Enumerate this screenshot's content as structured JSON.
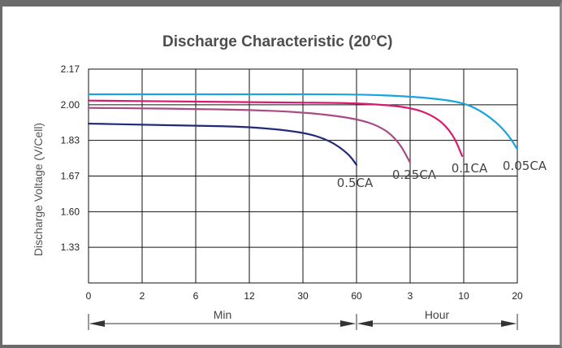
{
  "chart_data": {
    "type": "line",
    "title": "Discharge Characteristic (20",
    "title_suffix": "C)",
    "title_degree": "o",
    "ylabel": "Discharge Voltage (V/Cell)",
    "y_ticks": [
      "2.17",
      "2.00",
      "1.83",
      "1.67",
      "1.60",
      "1.33"
    ],
    "x_ticks": [
      "0",
      "2",
      "6",
      "12",
      "30",
      "60",
      "3",
      "10",
      "20"
    ],
    "x_segments": [
      {
        "label": "Min",
        "from_tick": 0,
        "to_tick": 5
      },
      {
        "label": "Hour",
        "from_tick": 5,
        "to_tick": 8
      }
    ],
    "grid": true,
    "series": [
      {
        "name": "0.5CA",
        "color": "#1f2a7a",
        "points": [
          [
            0,
            1.91
          ],
          [
            1,
            1.905
          ],
          [
            2,
            1.9
          ],
          [
            3,
            1.895
          ],
          [
            4,
            1.87
          ],
          [
            4.5,
            1.83
          ],
          [
            4.85,
            1.77
          ],
          [
            5,
            1.72
          ]
        ]
      },
      {
        "name": "0.25CA",
        "color": "#a84a86",
        "points": [
          [
            0,
            1.985
          ],
          [
            1,
            1.983
          ],
          [
            2,
            1.98
          ],
          [
            3,
            1.975
          ],
          [
            4,
            1.965
          ],
          [
            5,
            1.935
          ],
          [
            5.5,
            1.89
          ],
          [
            5.8,
            1.82
          ],
          [
            6,
            1.73
          ]
        ]
      },
      {
        "name": "0.1CA",
        "color": "#d81b6e",
        "points": [
          [
            0,
            2.02
          ],
          [
            2,
            2.015
          ],
          [
            4,
            2.01
          ],
          [
            5,
            2.008
          ],
          [
            6,
            1.99
          ],
          [
            6.5,
            1.94
          ],
          [
            6.8,
            1.86
          ],
          [
            6.97,
            1.76
          ]
        ]
      },
      {
        "name": "0.05CA",
        "color": "#1aa3df",
        "points": [
          [
            0,
            2.05
          ],
          [
            3,
            2.05
          ],
          [
            5,
            2.05
          ],
          [
            6,
            2.04
          ],
          [
            6.8,
            2.02
          ],
          [
            7.2,
            1.99
          ],
          [
            7.6,
            1.92
          ],
          [
            7.85,
            1.85
          ],
          [
            8,
            1.79
          ]
        ]
      }
    ]
  }
}
